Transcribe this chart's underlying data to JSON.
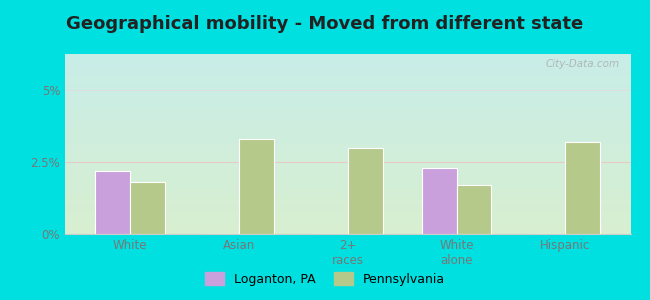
{
  "title": "Geographical mobility - Moved from different state",
  "categories": [
    "White",
    "Asian",
    "2+\nraces",
    "White\nalone",
    "Hispanic"
  ],
  "loganton_values": [
    2.2,
    0.0,
    0.0,
    2.3,
    0.0
  ],
  "pennsylvania_values": [
    1.8,
    3.3,
    3.0,
    1.7,
    3.2
  ],
  "loganton_color": "#c9a0dc",
  "pennsylvania_color": "#b5c98a",
  "ylim": [
    0,
    6.25
  ],
  "yticks": [
    0,
    2.5,
    5.0
  ],
  "yticklabels": [
    "0%",
    "2.5%",
    "5%"
  ],
  "bg_top": "#c8ede8",
  "bg_bottom": "#d8efd0",
  "outer_bg": "#00e0e0",
  "legend_labels": [
    "Loganton, PA",
    "Pennsylvania"
  ],
  "title_fontsize": 13,
  "bar_width": 0.32,
  "watermark": "City-Data.com",
  "grid_color": "#dddddd",
  "pink_line_color": "#e8c8c8",
  "spine_color": "#cccccc",
  "tick_color": "#777777"
}
